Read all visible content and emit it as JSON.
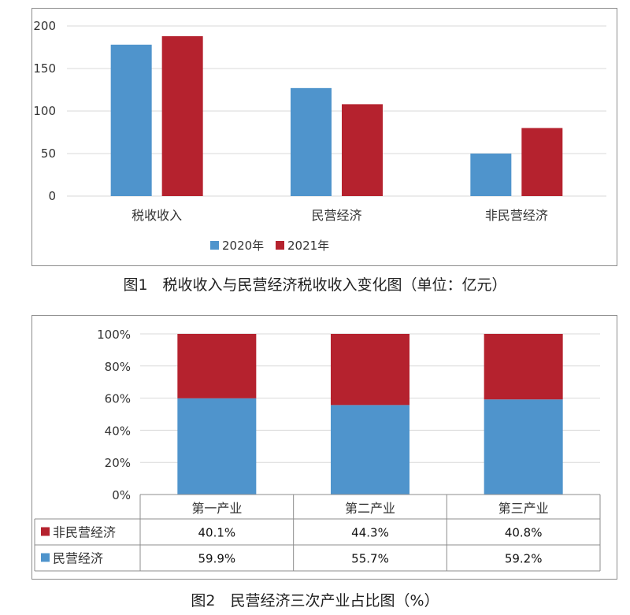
{
  "chart_data": [
    {
      "type": "bar",
      "title": "图1　税收收入与民营经济税收收入变化图（单位：亿元）",
      "categories": [
        "税收收入",
        "民营经济",
        "非民营经济"
      ],
      "series": [
        {
          "name": "2020年",
          "values": [
            178,
            127,
            50
          ],
          "color": "#4f94cc"
        },
        {
          "name": "2021年",
          "values": [
            188,
            108,
            80
          ],
          "color": "#b5222e"
        }
      ],
      "yticks": [
        "0",
        "50",
        "100",
        "150",
        "200"
      ],
      "ylim": [
        0,
        200
      ],
      "grid": true,
      "legend": "bottom"
    },
    {
      "type": "bar",
      "stacked": "percent",
      "title": "图2　民营经济三次产业占比图（%）",
      "categories": [
        "第一产业",
        "第二产业",
        "第三产业"
      ],
      "series": [
        {
          "name": "民营经济",
          "values": [
            59.9,
            55.7,
            59.2
          ],
          "labels": [
            "59.9%",
            "55.7%",
            "59.2%"
          ],
          "color": "#4f94cc"
        },
        {
          "name": "非民营经济",
          "values": [
            40.1,
            44.3,
            40.8
          ],
          "labels": [
            "40.1%",
            "44.3%",
            "40.8%"
          ],
          "color": "#b5222e"
        }
      ],
      "yticks": [
        "0%",
        "20%",
        "40%",
        "60%",
        "80%",
        "100%"
      ],
      "ylim": [
        0,
        100
      ],
      "grid": true,
      "legend": "data-table"
    }
  ]
}
